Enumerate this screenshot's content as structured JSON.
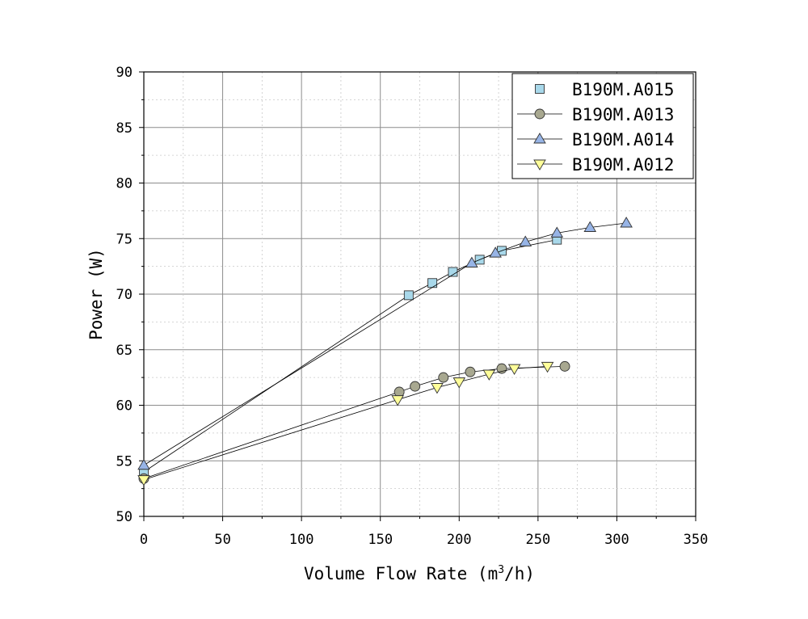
{
  "chart_data": {
    "type": "line",
    "xlabel": "Volume Flow Rate (m",
    "xlabel_sup": "3",
    "xlabel_suffix": "/h)",
    "ylabel": "Power (W)",
    "xlim": [
      0,
      350
    ],
    "ylim": [
      50,
      90
    ],
    "xticks": [
      0,
      50,
      100,
      150,
      200,
      250,
      300,
      350
    ],
    "yticks": [
      50,
      55,
      60,
      65,
      70,
      75,
      80,
      85,
      90
    ],
    "xtick_labels": [
      "0",
      "50",
      "100",
      "150",
      "200",
      "250",
      "300",
      "350"
    ],
    "ytick_labels": [
      "50",
      "55",
      "60",
      "65",
      "70",
      "75",
      "80",
      "85",
      "90"
    ],
    "grid": true,
    "legend_position": "top-right",
    "series": [
      {
        "name": "B190M.A015",
        "marker": "square",
        "color": "#a8d8ea",
        "x": [
          0,
          168,
          183,
          196,
          213,
          227,
          262
        ],
        "y": [
          54.0,
          69.9,
          71.0,
          72.0,
          73.1,
          73.9,
          74.9
        ]
      },
      {
        "name": "B190M.A013",
        "marker": "circle",
        "color": "#a8a890",
        "x": [
          0,
          162,
          172,
          190,
          207,
          227,
          267
        ],
        "y": [
          53.4,
          61.2,
          61.7,
          62.5,
          63.0,
          63.3,
          63.5
        ]
      },
      {
        "name": "B190M.A014",
        "marker": "triangle-up",
        "color": "#97b4e6",
        "x": [
          0,
          208,
          223,
          242,
          262,
          283,
          306
        ],
        "y": [
          54.6,
          72.8,
          73.7,
          74.7,
          75.5,
          76.0,
          76.4
        ]
      },
      {
        "name": "B190M.A012",
        "marker": "triangle-down",
        "color": "#ffff99",
        "x": [
          0,
          161,
          186,
          200,
          219,
          235,
          256
        ],
        "y": [
          53.3,
          60.5,
          61.6,
          62.1,
          62.8,
          63.3,
          63.5
        ]
      }
    ]
  }
}
